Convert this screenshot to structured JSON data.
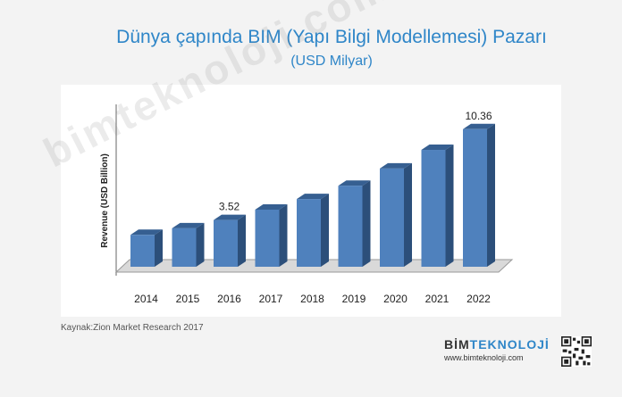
{
  "title": "Dünya çapında BIM (Yapı Bilgi Modellemesi) Pazarı",
  "subtitle": "(USD Milyar)",
  "source": "Kaynak:Zion Market Research 2017",
  "watermark": "bimteknoloji.com",
  "brand": {
    "logo_part1": "BİM",
    "logo_part2": "TEKNOLOJİ",
    "url": "www.bimteknoloji.com"
  },
  "colors": {
    "title": "#2f86c8",
    "bar_front": "#4f81bd",
    "bar_top": "#365f91",
    "bar_side": "#2c4f7a",
    "floor": "#d9d9d9"
  },
  "chart_data": {
    "type": "bar",
    "title": "",
    "xlabel": "",
    "ylabel": "Revenue (USD Billion)",
    "categories": [
      "2014",
      "2015",
      "2016",
      "2017",
      "2018",
      "2019",
      "2020",
      "2021",
      "2022"
    ],
    "values": [
      2.4,
      2.9,
      3.52,
      4.3,
      5.1,
      6.1,
      7.4,
      8.8,
      10.36
    ],
    "data_labels": [
      null,
      null,
      "3.52",
      null,
      null,
      null,
      null,
      null,
      "10.36"
    ],
    "ylim": [
      0,
      12
    ],
    "grid": false,
    "legend": "none"
  }
}
